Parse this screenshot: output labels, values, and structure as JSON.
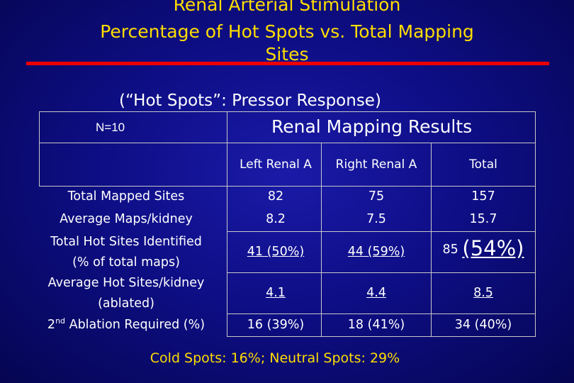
{
  "title": {
    "line1": "Renal Arterial Stimulation",
    "line2": "Percentage of Hot Spots vs. Total Mapping",
    "line3": "Sites"
  },
  "subtitle": "(“Hot Spots”: Pressor Response)",
  "table": {
    "n_label": "N=10",
    "group_header": "Renal Mapping Results",
    "columns": [
      "Left Renal A",
      "Right Renal A",
      "Total"
    ],
    "rows": [
      {
        "label": "Total Mapped Sites",
        "values": [
          "82",
          "75",
          "157"
        ]
      },
      {
        "label": "Average Maps/kidney",
        "values": [
          "8.2",
          "7.5",
          "15.7"
        ]
      },
      {
        "label": "Total Hot Sites Identified",
        "label2": "(% of total maps)",
        "values": [
          "41 (50%)",
          "44 (59%)",
          "85"
        ],
        "total_big": "(54%)"
      },
      {
        "label": "Average Hot Sites/kidney",
        "label2": "(ablated)",
        "values": [
          "4.1",
          "4.4",
          "8.5"
        ]
      },
      {
        "label_pre": "2",
        "label_sup": "nd",
        "label_post": " Ablation Required (%)",
        "values": [
          "16 (39%)",
          "18 (41%)",
          "34 (40%)"
        ]
      }
    ]
  },
  "footer": "Cold Spots: 16%; Neutral Spots: 29%",
  "colors": {
    "background": "#0e0e86",
    "title": "#ffdd00",
    "rule": "#ee0000",
    "text": "#ffffff",
    "border": "#c8c8c8"
  }
}
